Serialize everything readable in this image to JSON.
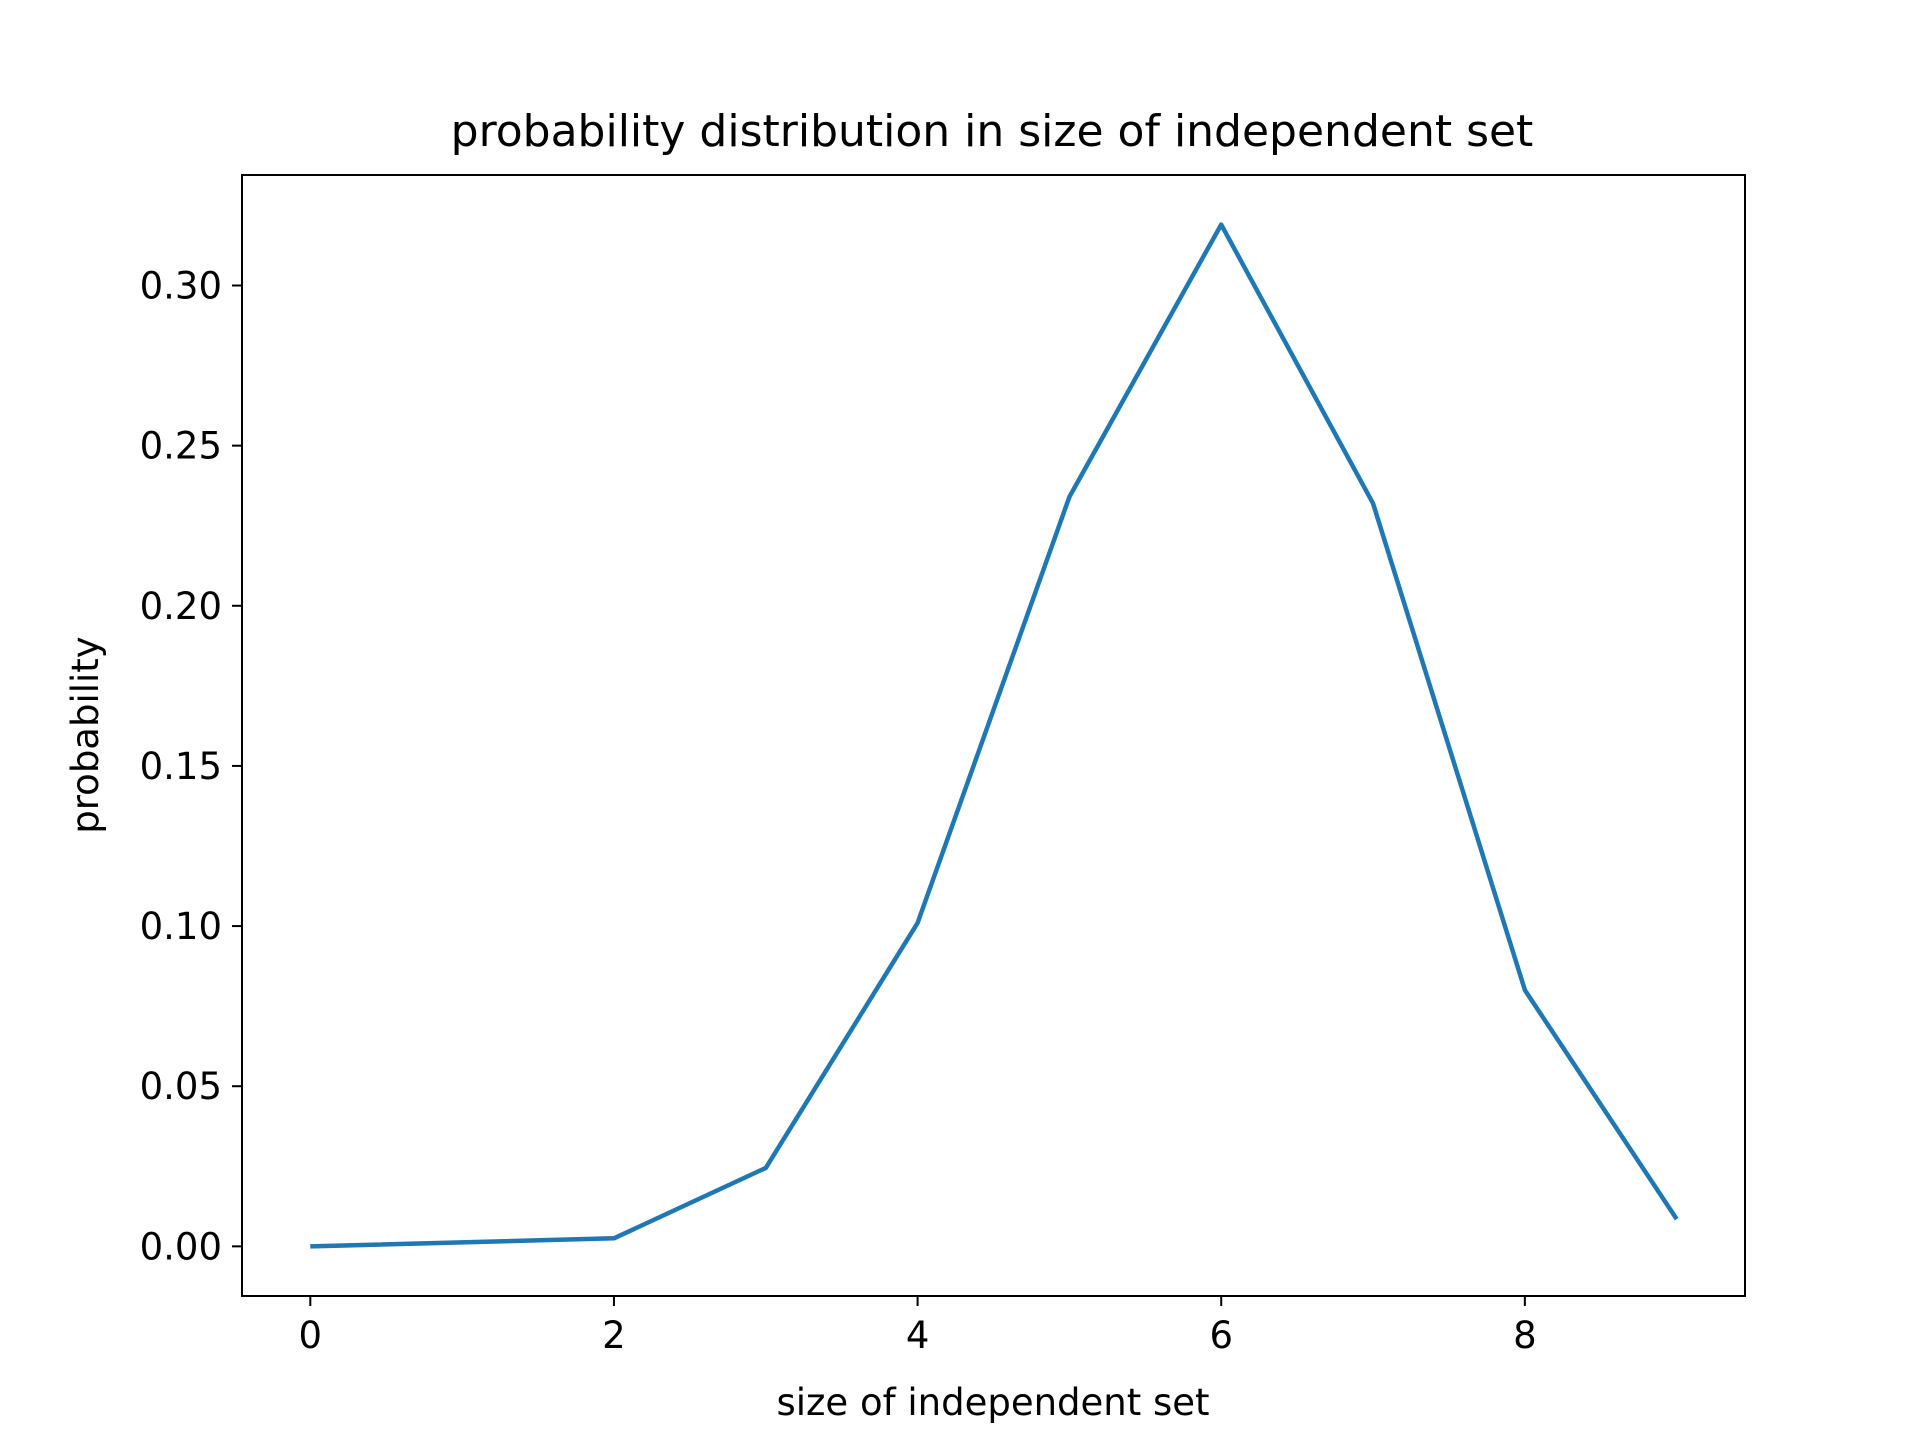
{
  "chart_data": {
    "type": "line",
    "title": "probability distribution in size of independent set",
    "xlabel": "size of independent set",
    "ylabel": "probability",
    "x": [
      0,
      2,
      3,
      4,
      5,
      6,
      7,
      8,
      9
    ],
    "series": [
      {
        "values": [
          0.0,
          0.0025,
          0.0245,
          0.101,
          0.234,
          0.319,
          0.232,
          0.08,
          0.0085
        ],
        "color": "#1f77b4"
      }
    ],
    "xlim": [
      -0.45,
      9.45
    ],
    "ylim": [
      -0.0155,
      0.3345
    ],
    "xticks": [
      0,
      2,
      4,
      6,
      8
    ],
    "xtick_labels": [
      "0",
      "2",
      "4",
      "6",
      "8"
    ],
    "yticks": [
      0.0,
      0.05,
      0.1,
      0.15,
      0.2,
      0.25,
      0.3
    ],
    "ytick_labels": [
      "0.00",
      "0.05",
      "0.10",
      "0.15",
      "0.20",
      "0.25",
      "0.30"
    ],
    "grid": false,
    "legend": "none"
  }
}
